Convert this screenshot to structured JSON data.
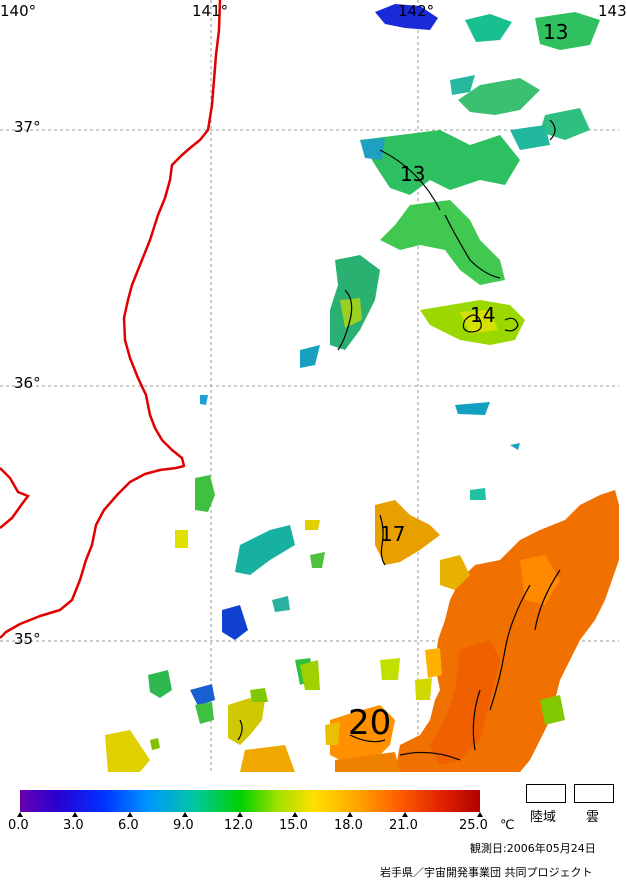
{
  "map": {
    "longitude_labels": [
      "140°",
      "141°",
      "142°",
      "143"
    ],
    "latitude_labels": [
      "37°",
      "36°",
      "35°"
    ],
    "contour_labels": [
      "13",
      "13",
      "14",
      "17",
      "20"
    ]
  },
  "legend": {
    "ticks": [
      "0.0",
      "3.0",
      "6.0",
      "9.0",
      "12.0",
      "15.0",
      "18.0",
      "21.0",
      "25.0"
    ],
    "unit": "℃",
    "land_label": "陸域",
    "cloud_label": "雲"
  },
  "footer": {
    "observation_date": "観測日:2006年05月24日",
    "credit": "岩手県／宇宙開発事業団 共同プロジェクト"
  },
  "colors": {
    "coastline": "#e00000",
    "grid": "#9a9a9a"
  }
}
